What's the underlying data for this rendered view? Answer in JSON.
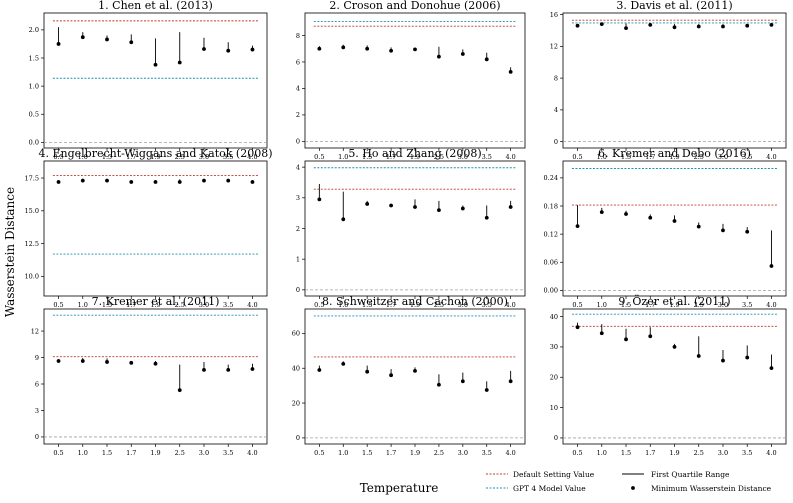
{
  "figure": {
    "ylabel": "Wasserstein Distance",
    "xlabel": "Temperature",
    "legend": [
      {
        "label": "Default Setting Value",
        "kind": "line",
        "color": "#c0392b",
        "dashed": true
      },
      {
        "label": "GPT 4 Model Value",
        "kind": "line",
        "color": "#1f8fb4",
        "dashed": true
      },
      {
        "label": "First Quartile Range",
        "kind": "line",
        "color": "#000000",
        "dashed": false
      },
      {
        "label": "Minimum Wasserstein Distance",
        "kind": "dot",
        "color": "#000000",
        "dashed": false
      }
    ]
  },
  "chart_data": [
    {
      "type": "scatter",
      "title": "1. Chen et al. (2013)",
      "categories": [
        "0.5",
        "1.0",
        "1.5",
        "1.7",
        "1.9",
        "2.5",
        "3.0",
        "3.5",
        "4.0"
      ],
      "ylim": [
        -0.1,
        2.3
      ],
      "yticks": [
        0.0,
        0.5,
        1.0,
        1.5,
        2.0
      ],
      "yticklabels": [
        "0.0",
        "0.5",
        "1.0",
        "1.5",
        "2.0"
      ],
      "min_values": [
        1.75,
        1.87,
        1.83,
        1.78,
        1.38,
        1.42,
        1.66,
        1.63,
        1.65
      ],
      "q1_upper": [
        2.05,
        1.96,
        1.9,
        1.92,
        1.85,
        1.96,
        1.86,
        1.78,
        1.72
      ],
      "default_value": 2.16,
      "gpt4_value": 1.14,
      "zero_line": 0
    },
    {
      "type": "scatter",
      "title": "2. Croson and Donohue (2006)",
      "categories": [
        "0.5",
        "1.0",
        "1.5",
        "1.7",
        "1.9",
        "2.5",
        "3.0",
        "3.5",
        "4.0"
      ],
      "ylim": [
        -0.5,
        9.7
      ],
      "yticks": [
        0,
        2,
        4,
        6,
        8
      ],
      "yticklabels": [
        "0",
        "2",
        "4",
        "6",
        "8"
      ],
      "min_values": [
        7.0,
        7.1,
        7.0,
        6.85,
        6.95,
        6.4,
        6.6,
        6.2,
        5.25
      ],
      "q1_upper": [
        7.2,
        7.3,
        7.25,
        7.1,
        7.05,
        7.15,
        6.95,
        6.7,
        5.6
      ],
      "default_value": 8.7,
      "gpt4_value": 9.05,
      "zero_line": 0
    },
    {
      "type": "scatter",
      "title": "3. Davis et al. (2011)",
      "categories": [
        "0.5",
        "1.0",
        "1.5",
        "1.7",
        "1.9",
        "2.5",
        "3.0",
        "3.5",
        "4.0"
      ],
      "ylim": [
        -0.8,
        16.2
      ],
      "yticks": [
        0,
        4,
        8,
        12,
        16
      ],
      "yticklabels": [
        "0",
        "4",
        "8",
        "12",
        "16"
      ],
      "min_values": [
        14.6,
        14.8,
        14.3,
        14.7,
        14.4,
        14.5,
        14.5,
        14.6,
        14.7
      ],
      "q1_upper": [
        14.8,
        14.95,
        14.9,
        14.9,
        14.8,
        14.8,
        14.8,
        14.8,
        14.8
      ],
      "default_value": 15.3,
      "gpt4_value": 14.95,
      "zero_line": 0
    },
    {
      "type": "scatter",
      "title": "4. Engelbrecht-Wiggans and Katok (2008)",
      "categories": [
        "0.5",
        "1.0",
        "1.5",
        "1.7",
        "1.9",
        "2.5",
        "3.0",
        "3.5",
        "4.0"
      ],
      "ylim": [
        8.5,
        18.8
      ],
      "yticks": [
        10.0,
        12.5,
        15.0,
        17.5
      ],
      "yticklabels": [
        "10.0",
        "12.5",
        "15.0",
        "17.5"
      ],
      "min_values": [
        17.2,
        17.3,
        17.3,
        17.2,
        17.2,
        17.2,
        17.3,
        17.3,
        17.2
      ],
      "q1_upper": [
        17.35,
        17.45,
        17.45,
        17.35,
        17.35,
        17.4,
        17.45,
        17.45,
        17.35
      ],
      "default_value": 17.7,
      "gpt4_value": 11.7,
      "zero_line": null
    },
    {
      "type": "scatter",
      "title": "5. Ho and Zhang (2008)",
      "categories": [
        "0.5",
        "1.0",
        "1.5",
        "1.7",
        "1.9",
        "2.5",
        "3.0",
        "3.5",
        "4.0"
      ],
      "ylim": [
        -0.2,
        4.2
      ],
      "yticks": [
        0,
        1,
        2,
        3,
        4
      ],
      "yticklabels": [
        "0",
        "1",
        "2",
        "3",
        "4"
      ],
      "min_values": [
        2.95,
        2.3,
        2.8,
        2.75,
        2.7,
        2.6,
        2.65,
        2.35,
        2.7
      ],
      "q1_upper": [
        3.45,
        3.2,
        2.9,
        2.8,
        2.95,
        2.9,
        2.75,
        2.75,
        2.9
      ],
      "default_value": 3.28,
      "gpt4_value": 3.98,
      "zero_line": 0
    },
    {
      "type": "scatter",
      "title": "6. Kremer and Debo (2016)",
      "categories": [
        "0.5",
        "1.0",
        "1.5",
        "1.7",
        "1.9",
        "2.5",
        "3.0",
        "3.5",
        "4.0"
      ],
      "ylim": [
        -0.012,
        0.276
      ],
      "yticks": [
        0.0,
        0.06,
        0.12,
        0.18,
        0.24
      ],
      "yticklabels": [
        "0.00",
        "0.06",
        "0.12",
        "0.18",
        "0.24"
      ],
      "min_values": [
        0.137,
        0.167,
        0.163,
        0.155,
        0.148,
        0.136,
        0.128,
        0.125,
        0.052
      ],
      "q1_upper": [
        0.182,
        0.176,
        0.17,
        0.162,
        0.16,
        0.145,
        0.142,
        0.135,
        0.128
      ],
      "default_value": 0.182,
      "gpt4_value": 0.26,
      "zero_line": 0
    },
    {
      "type": "scatter",
      "title": "7. Kremer et al. (2011)",
      "categories": [
        "0.5",
        "1.0",
        "1.5",
        "1.7",
        "1.9",
        "2.5",
        "3.0",
        "3.5",
        "4.0"
      ],
      "ylim": [
        -0.8,
        14.5
      ],
      "yticks": [
        0,
        3,
        6,
        9,
        12
      ],
      "yticklabels": [
        "0",
        "3",
        "6",
        "9",
        "12"
      ],
      "min_values": [
        8.6,
        8.6,
        8.5,
        8.4,
        8.3,
        5.3,
        7.6,
        7.6,
        7.7
      ],
      "q1_upper": [
        8.8,
        8.95,
        8.9,
        8.55,
        8.6,
        8.2,
        8.5,
        8.2,
        8.3
      ],
      "default_value": 9.1,
      "gpt4_value": 13.8,
      "zero_line": 0
    },
    {
      "type": "scatter",
      "title": "8. Schweitzer and Cachon (2000)",
      "categories": [
        "0.5",
        "1.0",
        "1.5",
        "1.7",
        "1.9",
        "2.5",
        "3.0",
        "3.5",
        "4.0"
      ],
      "ylim": [
        -3.5,
        74.0
      ],
      "yticks": [
        0,
        20,
        40,
        60
      ],
      "yticklabels": [
        "0",
        "20",
        "40",
        "60"
      ],
      "min_values": [
        39.0,
        42.5,
        38.0,
        36.0,
        38.5,
        30.5,
        32.5,
        27.5,
        32.5
      ],
      "q1_upper": [
        41.5,
        44.0,
        41.5,
        39.5,
        40.5,
        36.5,
        37.5,
        32.5,
        38.5
      ],
      "default_value": 46.5,
      "gpt4_value": 70.0,
      "zero_line": 0
    },
    {
      "type": "scatter",
      "title": "9. Özer et al. (2011)",
      "categories": [
        "0.5",
        "1.0",
        "1.5",
        "1.7",
        "1.9",
        "2.5",
        "3.0",
        "3.5",
        "4.0"
      ],
      "ylim": [
        -2.0,
        42.5
      ],
      "yticks": [
        0,
        10,
        20,
        30,
        40
      ],
      "yticklabels": [
        "0",
        "10",
        "20",
        "30",
        "40"
      ],
      "min_values": [
        36.5,
        34.5,
        32.5,
        33.5,
        30.0,
        27.0,
        25.5,
        26.5,
        23.0
      ],
      "q1_upper": [
        38.0,
        37.5,
        36.0,
        36.5,
        31.0,
        33.5,
        29.0,
        30.5,
        27.5
      ],
      "default_value": 36.8,
      "gpt4_value": 40.8,
      "zero_line": 0
    }
  ]
}
